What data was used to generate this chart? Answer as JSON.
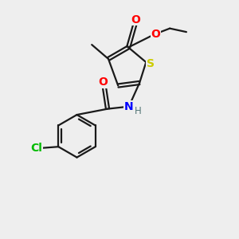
{
  "background_color": "#eeeeee",
  "bond_color": "#1a1a1a",
  "atom_colors": {
    "O": "#ff0000",
    "S": "#cccc00",
    "N": "#0000ff",
    "Cl": "#00bb00",
    "H": "#557777",
    "C": "#1a1a1a"
  },
  "figsize": [
    3.0,
    3.0
  ],
  "dpi": 100
}
